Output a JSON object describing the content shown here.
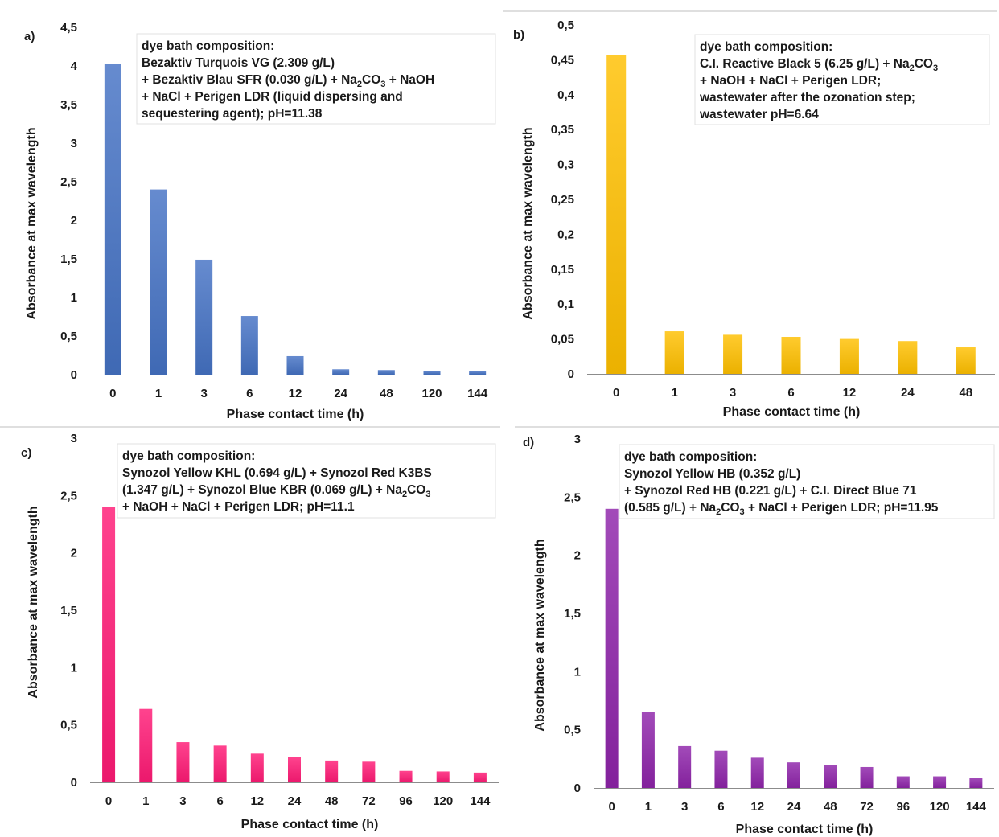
{
  "chart_data": [
    {
      "type": "bar",
      "panel_label": "a)",
      "color": "#4472c4",
      "title": "",
      "xlabel": "Phase contact time (h)",
      "ylabel": "Absorbance at max wavelength",
      "ylim": [
        0,
        4.5
      ],
      "yticks": [
        "0",
        "0,5",
        "1",
        "1,5",
        "2",
        "2,5",
        "3",
        "3,5",
        "4",
        "4,5"
      ],
      "categories": [
        "0",
        "1",
        "3",
        "6",
        "12",
        "24",
        "48",
        "120",
        "144"
      ],
      "values": [
        4.03,
        2.4,
        1.49,
        0.76,
        0.24,
        0.07,
        0.06,
        0.05,
        0.045
      ],
      "grid": false,
      "legend": "none",
      "annotation": {
        "heading": "dye bath composition:",
        "lines": [
          [
            {
              "t": "Bezaktiv Turquois VG (2.309 g/L)"
            }
          ],
          [
            {
              "t": "+ Bezaktiv Blau SFR (0.030 g/L) + Na"
            },
            {
              "t": "2",
              "sub": true
            },
            {
              "t": "CO"
            },
            {
              "t": "3",
              "sub": true
            },
            {
              "t": " + NaOH"
            }
          ],
          [
            {
              "t": "+ NaCl + Perigen LDR (liquid dispersing and"
            }
          ],
          [
            {
              "t": "sequestering agent); pH=11.38"
            }
          ]
        ]
      }
    },
    {
      "type": "bar",
      "panel_label": "b)",
      "color": "#ffc000",
      "title": "",
      "xlabel": "Phase contact time (h)",
      "ylabel": "Absorbance at max wavelength",
      "ylim": [
        0,
        0.5
      ],
      "yticks": [
        "0",
        "0,05",
        "0,1",
        "0,15",
        "0,2",
        "0,25",
        "0,3",
        "0,35",
        "0,4",
        "0,45",
        "0,5"
      ],
      "categories": [
        "0",
        "1",
        "3",
        "6",
        "12",
        "24",
        "48"
      ],
      "values": [
        0.457,
        0.061,
        0.056,
        0.053,
        0.05,
        0.047,
        0.038
      ],
      "grid": false,
      "legend": "none",
      "annotation": {
        "heading": "dye bath composition:",
        "lines": [
          [
            {
              "t": "C.I. Reactive Black 5 (6.25 g/L) + Na"
            },
            {
              "t": "2",
              "sub": true
            },
            {
              "t": "CO"
            },
            {
              "t": "3",
              "sub": true
            }
          ],
          [
            {
              "t": "+ NaOH + NaCl + Perigen LDR;"
            }
          ],
          [
            {
              "t": "wastewater after the ozonation step;"
            }
          ],
          [
            {
              "t": "wastewater pH=6.64"
            }
          ]
        ]
      }
    },
    {
      "type": "bar",
      "panel_label": "c)",
      "color": "#ff1a75",
      "title": "",
      "xlabel": "Phase contact time (h)",
      "ylabel": "Absorbance at max wavelength",
      "ylim": [
        0,
        3
      ],
      "yticks": [
        "0",
        "0,5",
        "1",
        "1,5",
        "2",
        "2,5",
        "3"
      ],
      "categories": [
        "0",
        "1",
        "3",
        "6",
        "12",
        "24",
        "48",
        "72",
        "96",
        "120",
        "144"
      ],
      "values": [
        2.4,
        0.64,
        0.35,
        0.32,
        0.25,
        0.22,
        0.19,
        0.18,
        0.1,
        0.095,
        0.085
      ],
      "grid": false,
      "legend": "none",
      "annotation": {
        "heading": "dye bath composition:",
        "lines": [
          [
            {
              "t": "Synozol Yellow KHL (0.694 g/L) + Synozol Red K3BS"
            }
          ],
          [
            {
              "t": "(1.347 g/L) + Synozol Blue KBR (0.069 g/L) + Na"
            },
            {
              "t": "2",
              "sub": true
            },
            {
              "t": "CO"
            },
            {
              "t": "3",
              "sub": true
            }
          ],
          [
            {
              "t": "+ NaOH + NaCl + Perigen LDR; pH=11.1"
            }
          ]
        ]
      }
    },
    {
      "type": "bar",
      "panel_label": "d)",
      "color": "#8e24aa",
      "title": "",
      "xlabel": "Phase contact time (h)",
      "ylabel": "Absorbance at max wavelength",
      "ylim": [
        0,
        3
      ],
      "yticks": [
        "0",
        "0,5",
        "1",
        "1,5",
        "2",
        "2,5",
        "3"
      ],
      "categories": [
        "0",
        "1",
        "3",
        "6",
        "12",
        "24",
        "48",
        "72",
        "96",
        "120",
        "144"
      ],
      "values": [
        2.4,
        0.65,
        0.36,
        0.32,
        0.26,
        0.22,
        0.2,
        0.18,
        0.1,
        0.1,
        0.085
      ],
      "grid": false,
      "legend": "none",
      "annotation": {
        "heading": "dye bath composition:",
        "lines": [
          [
            {
              "t": "Synozol Yellow HB (0.352 g/L)"
            }
          ],
          [
            {
              "t": "+ Synozol Red HB (0.221 g/L) + C.I. Direct Blue 71"
            }
          ],
          [
            {
              "t": "(0.585 g/L) + Na"
            },
            {
              "t": "2",
              "sub": true
            },
            {
              "t": "CO"
            },
            {
              "t": "3",
              "sub": true
            },
            {
              "t": " + NaCl + Perigen LDR; pH=11.95"
            }
          ]
        ]
      }
    }
  ]
}
